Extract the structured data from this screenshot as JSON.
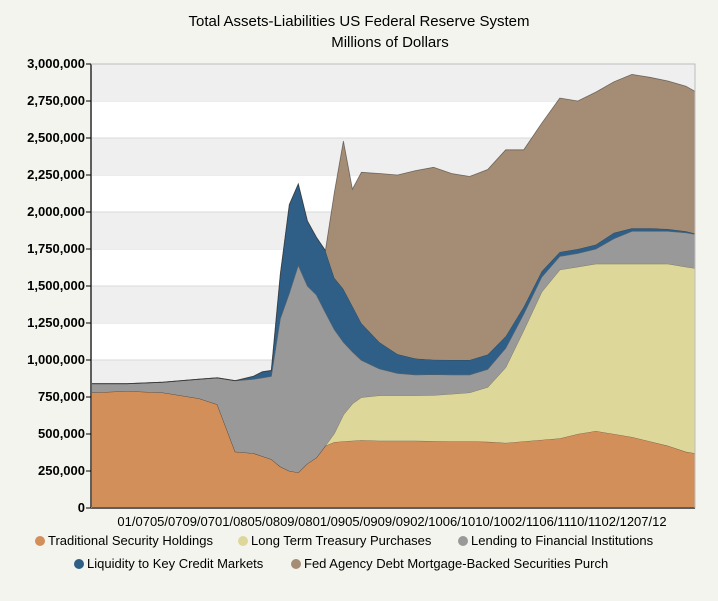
{
  "chart_data": {
    "type": "area",
    "stacked": true,
    "title": "Total Assets-Liabilities US Federal Reserve System",
    "subtitle": "Millions of Dollars",
    "xlabel": "",
    "ylabel": "",
    "ylim": [
      0,
      3000000
    ],
    "yticks": [
      0,
      250000,
      500000,
      750000,
      1000000,
      1250000,
      1500000,
      1750000,
      2000000,
      2250000,
      2500000,
      2750000,
      3000000
    ],
    "ytick_labels": [
      "0",
      "250,000",
      "500,000",
      "750,000",
      "1,000,000",
      "1,250,000",
      "1,500,000",
      "1,750,000",
      "2,000,000",
      "2,250,000",
      "2,500,000",
      "2,750,000",
      "3,000,000"
    ],
    "xtick_labels": "01/0705/0709/0701/0805/0809/0801/0905/0909/0902/1006/1010/1002/1106/1110/1102/1207/12",
    "x_domain_months": [
      0,
      67
    ],
    "grid": true,
    "legend_position": "bottom",
    "x": [
      0,
      4,
      8,
      12,
      14,
      16,
      18,
      19,
      20,
      21,
      22,
      23,
      24,
      25,
      26,
      27,
      28,
      29,
      30,
      32,
      34,
      36,
      38,
      40,
      42,
      44,
      46,
      48,
      50,
      52,
      54,
      56,
      58,
      60,
      62,
      64,
      66,
      67
    ],
    "series": [
      {
        "name": "Traditional Security Holdings",
        "color": "#d28f5a",
        "values": [
          780000,
          790000,
          780000,
          740000,
          700000,
          380000,
          370000,
          350000,
          330000,
          280000,
          250000,
          240000,
          300000,
          340000,
          420000,
          445000,
          450000,
          455000,
          458000,
          455000,
          455000,
          455000,
          452000,
          450000,
          450000,
          447000,
          440000,
          450000,
          460000,
          470000,
          500000,
          520000,
          500000,
          480000,
          450000,
          420000,
          380000,
          370000
        ]
      },
      {
        "name": "Long Term Treasury Purchases",
        "color": "#ddd89a",
        "values": [
          0,
          0,
          0,
          0,
          0,
          0,
          0,
          0,
          0,
          0,
          0,
          0,
          0,
          0,
          0,
          60000,
          180000,
          250000,
          290000,
          305000,
          305000,
          305000,
          310000,
          320000,
          330000,
          370000,
          510000,
          750000,
          1000000,
          1140000,
          1130000,
          1130000,
          1150000,
          1170000,
          1200000,
          1230000,
          1250000,
          1250000
        ]
      },
      {
        "name": "Lending to Financial Institutions",
        "color": "#999999",
        "values": [
          60000,
          50000,
          70000,
          130000,
          180000,
          480000,
          500000,
          530000,
          560000,
          1000000,
          1200000,
          1400000,
          1200000,
          1100000,
          900000,
          700000,
          490000,
          350000,
          250000,
          180000,
          150000,
          140000,
          140000,
          130000,
          120000,
          120000,
          130000,
          110000,
          100000,
          90000,
          90000,
          100000,
          170000,
          220000,
          220000,
          220000,
          230000,
          230000
        ]
      },
      {
        "name": "Liquidity to Key Credit Markets",
        "color": "#2f5f86",
        "values": [
          0,
          0,
          0,
          0,
          0,
          0,
          20000,
          40000,
          40000,
          300000,
          600000,
          550000,
          440000,
          390000,
          420000,
          350000,
          360000,
          310000,
          250000,
          180000,
          130000,
          110000,
          100000,
          100000,
          100000,
          100000,
          80000,
          50000,
          40000,
          30000,
          30000,
          30000,
          40000,
          20000,
          20000,
          15000,
          10000,
          5000
        ]
      },
      {
        "name": "Fed Agency Debt  Mortgage-Backed Securities Purch",
        "color": "#a58c74",
        "values": [
          0,
          0,
          0,
          0,
          0,
          0,
          0,
          0,
          0,
          0,
          0,
          0,
          0,
          0,
          0,
          580000,
          1000000,
          790000,
          1020000,
          1140000,
          1210000,
          1270000,
          1300000,
          1260000,
          1240000,
          1250000,
          1260000,
          1060000,
          1000000,
          1040000,
          1000000,
          1030000,
          1020000,
          1040000,
          1020000,
          1000000,
          980000,
          960000
        ]
      }
    ]
  }
}
